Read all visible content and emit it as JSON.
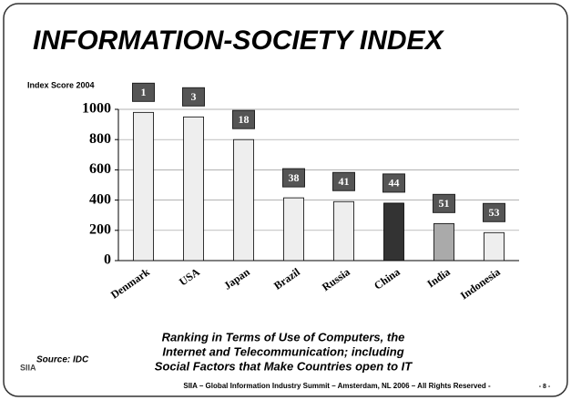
{
  "chart_data": {
    "type": "bar",
    "title": "INFORMATION-SOCIETY INDEX",
    "y_label": "Index Score 2004",
    "categories": [
      "Denmark",
      "USA",
      "Japan",
      "Brazil",
      "Russia",
      "China",
      "India",
      "Indonesia"
    ],
    "values": [
      980,
      950,
      800,
      415,
      390,
      380,
      245,
      185
    ],
    "colors": [
      "#eeeeee",
      "#eeeeee",
      "#eeeeee",
      "#eeeeee",
      "#eeeeee",
      "#333333",
      "#aaaaaa",
      "#eeeeee"
    ],
    "ranks": [
      1,
      3,
      18,
      38,
      41,
      44,
      51,
      53
    ],
    "ylim": [
      0,
      1000
    ],
    "yticks": [
      0,
      200,
      400,
      600,
      800,
      1000
    ],
    "grid": true,
    "caption": [
      "Ranking in Terms of Use of Computers, the",
      "Internet and Telecommunication; including",
      "Social Factors that Make Countries open to IT"
    ],
    "source": "Source: IDC",
    "logo": "SIIA",
    "footer": "SIIA – Global Information Industry Summit – Amsterdam, NL 2006 – All Rights Reserved -",
    "page": "- 8 -"
  }
}
